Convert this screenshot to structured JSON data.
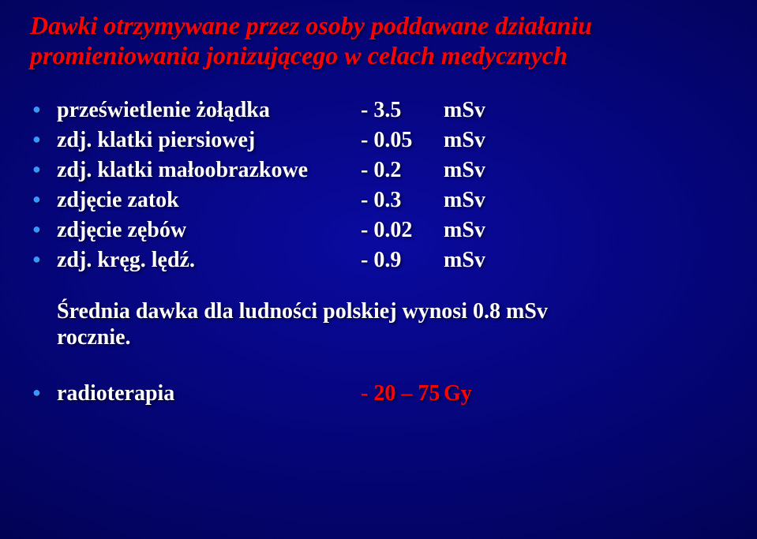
{
  "title_line1": "Dawki otrzymywane przez osoby poddawane działaniu",
  "title_line2": "promieniowania jonizującego w celach medycznych",
  "rows": [
    {
      "label": "prześwietlenie żołądka",
      "val": "- 3.5",
      "unit": "mSv"
    },
    {
      "label": "zdj. klatki piersiowej",
      "val": "- 0.05",
      "unit": "mSv"
    },
    {
      "label": "zdj. klatki małoobrazkowe",
      "val": "- 0.2",
      "unit": "mSv"
    },
    {
      "label": "zdjęcie zatok",
      "val": "- 0.3",
      "unit": "mSv"
    },
    {
      "label": "zdjęcie zębów",
      "val": "- 0.02",
      "unit": "mSv"
    },
    {
      "label": "zdj. kręg. lędź.",
      "val": "- 0.9",
      "unit": "mSv"
    }
  ],
  "avg_line1": "Średnia dawka dla ludności polskiej wynosi  0.8 mSv",
  "avg_line2": "rocznie.",
  "last": {
    "label": "radioterapia",
    "val": "- 20 – 75",
    "unit": "Gy"
  }
}
